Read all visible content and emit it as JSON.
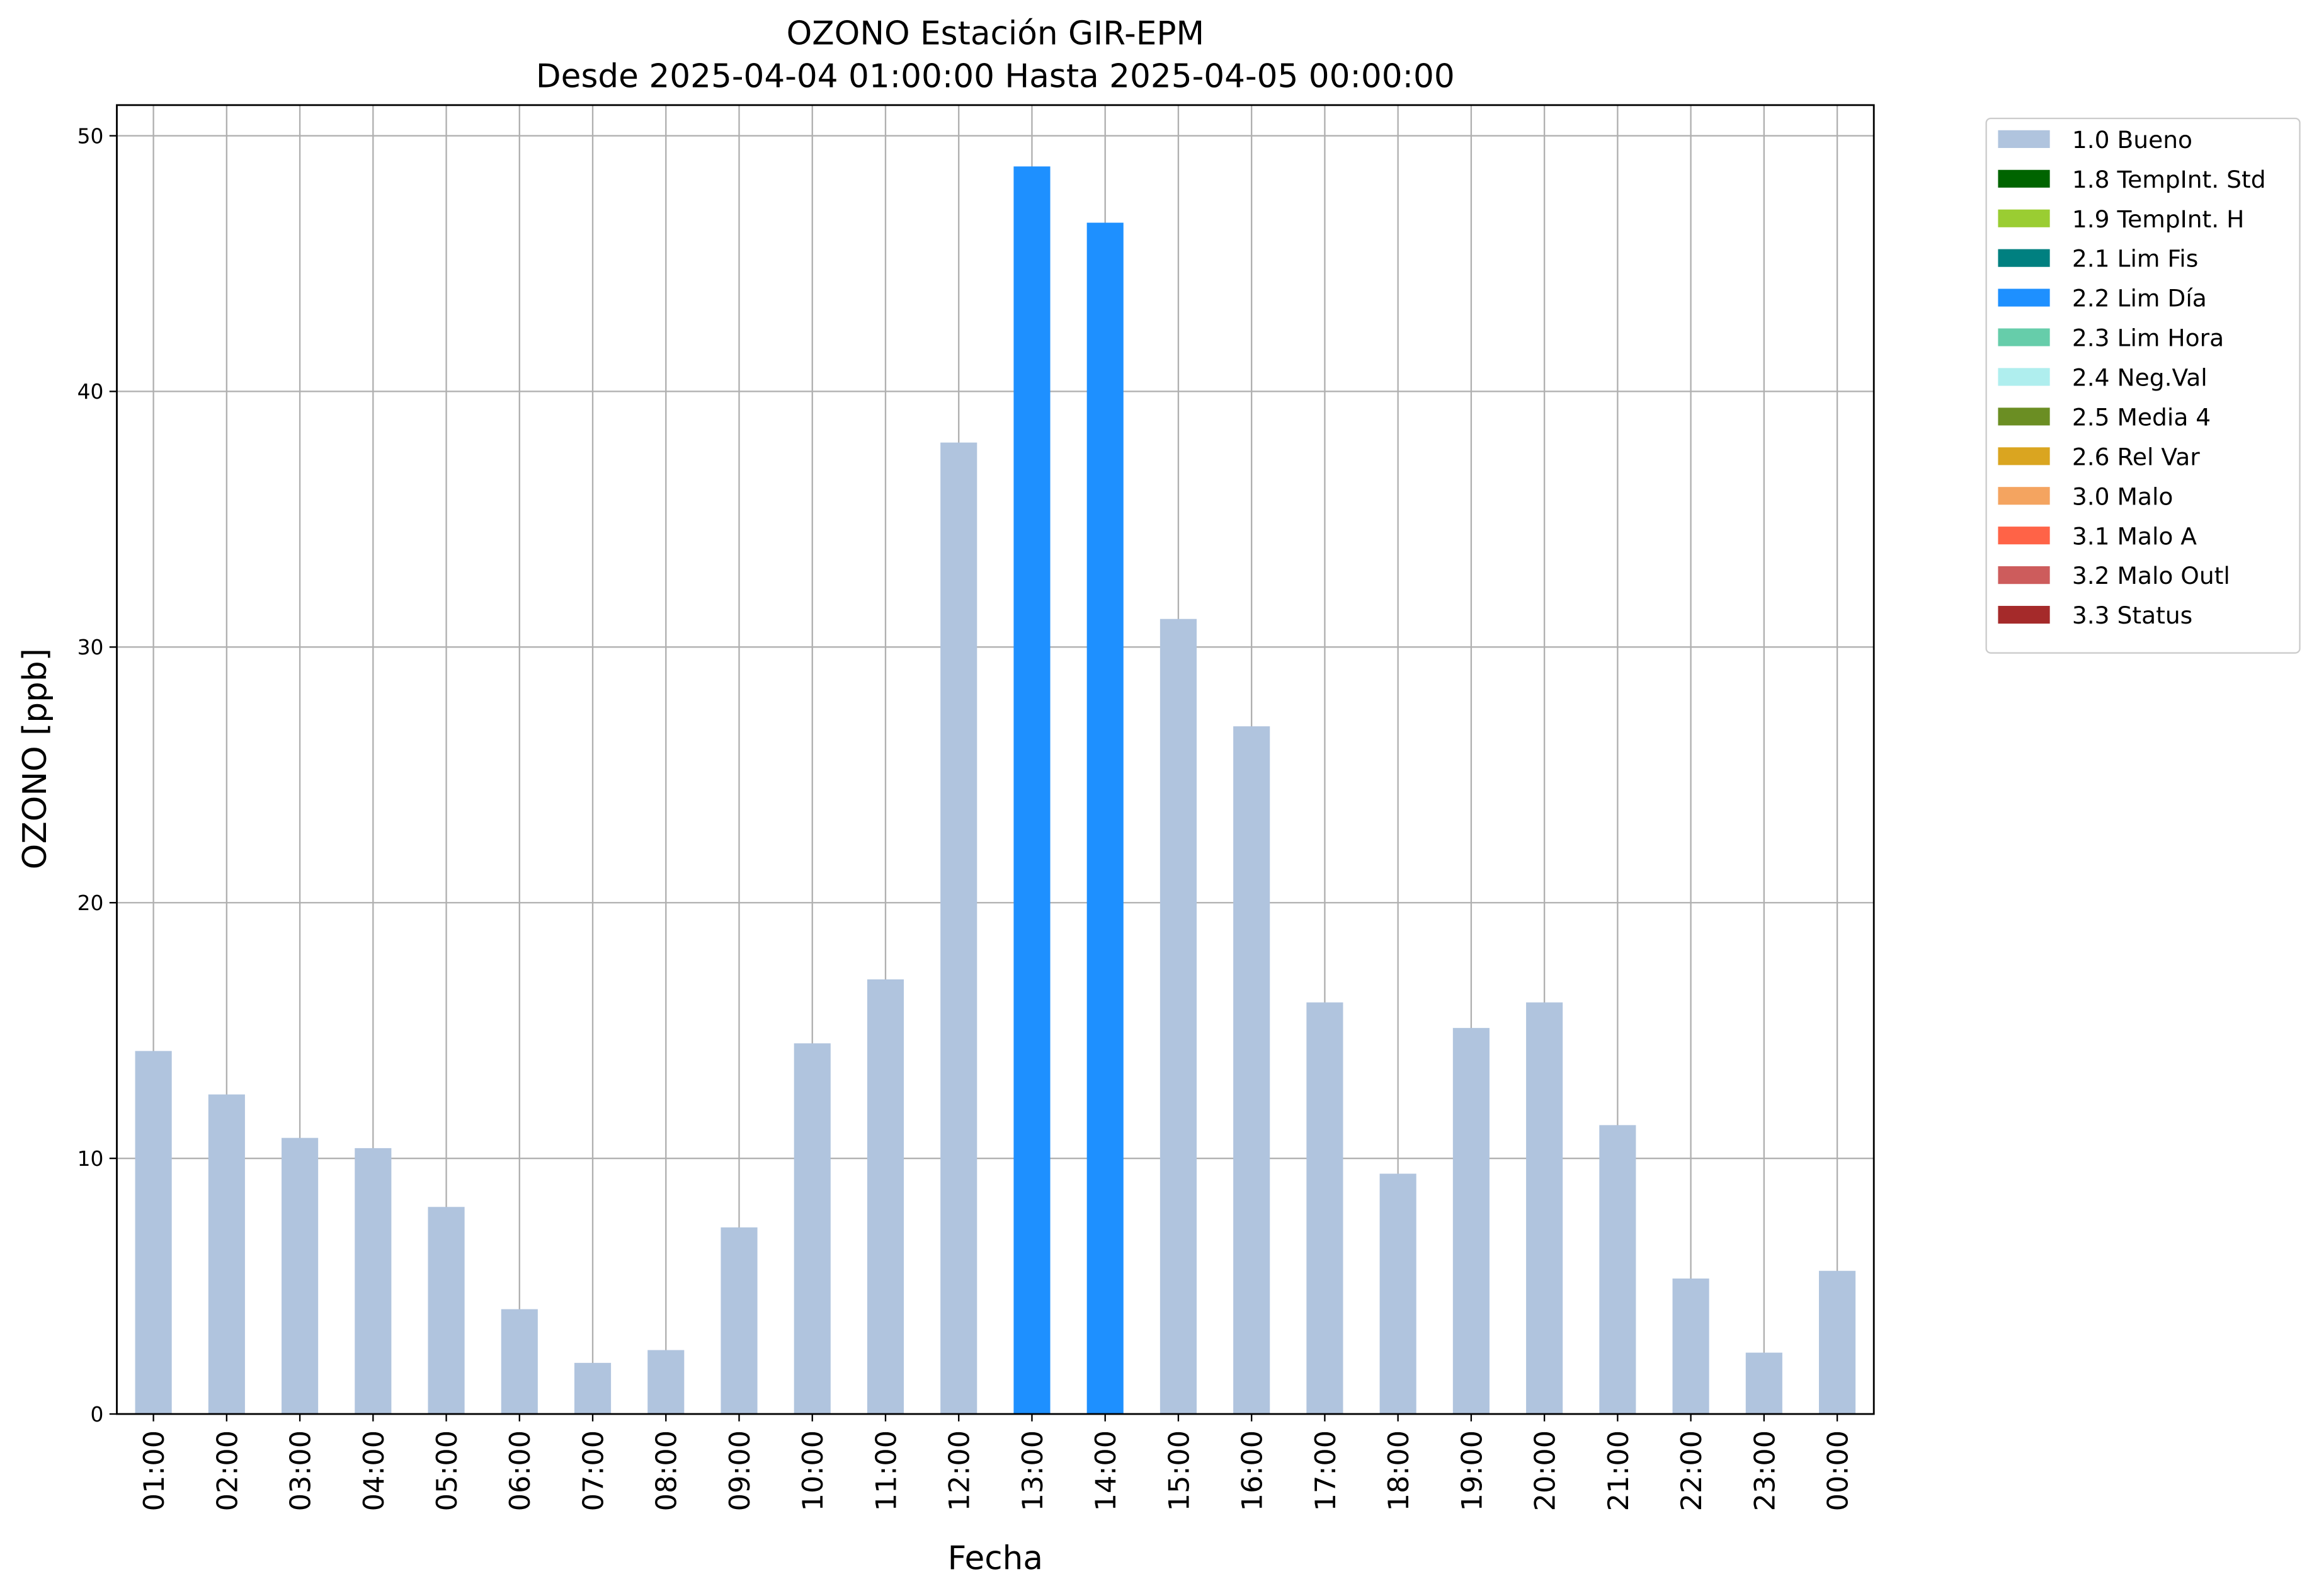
{
  "chart_data": {
    "type": "bar",
    "stacked": true,
    "title": "OZONO Estación GIR-EPM",
    "subtitle": "Desde 2025-04-04 01:00:00 Hasta 2025-04-05 00:00:00",
    "x_label": "Fecha",
    "y_label": "OZONO [ppb]",
    "categories": [
      "01:00",
      "02:00",
      "03:00",
      "04:00",
      "05:00",
      "06:00",
      "07:00",
      "08:00",
      "09:00",
      "10:00",
      "11:00",
      "12:00",
      "13:00",
      "14:00",
      "15:00",
      "16:00",
      "17:00",
      "18:00",
      "19:00",
      "20:00",
      "21:00",
      "22:00",
      "23:00",
      "00:00"
    ],
    "series": [
      {
        "name": "1.0 Bueno",
        "color": "#b0c4de",
        "values": [
          14.2,
          12.5,
          10.8,
          10.4,
          8.1,
          4.1,
          2.0,
          2.5,
          7.3,
          14.5,
          17.0,
          38.0,
          null,
          null,
          31.1,
          26.9,
          16.1,
          9.4,
          15.1,
          16.1,
          11.3,
          5.3,
          2.4,
          5.6
        ]
      },
      {
        "name": "1.8 TempInt. Std",
        "color": "#006400",
        "values": [
          null,
          null,
          null,
          null,
          null,
          null,
          null,
          null,
          null,
          null,
          null,
          null,
          null,
          null,
          null,
          null,
          null,
          null,
          null,
          null,
          null,
          null,
          null,
          null
        ]
      },
      {
        "name": "1.9 TempInt. H",
        "color": "#9acd32",
        "values": [
          null,
          null,
          null,
          null,
          null,
          null,
          null,
          null,
          null,
          null,
          null,
          null,
          null,
          null,
          null,
          null,
          null,
          null,
          null,
          null,
          null,
          null,
          null,
          null
        ]
      },
      {
        "name": "2.1 Lim Fis",
        "color": "#008080",
        "values": [
          null,
          null,
          null,
          null,
          null,
          null,
          null,
          null,
          null,
          null,
          null,
          null,
          null,
          null,
          null,
          null,
          null,
          null,
          null,
          null,
          null,
          null,
          null,
          null
        ]
      },
      {
        "name": "2.2 Lim Día",
        "color": "#1e90ff",
        "values": [
          null,
          null,
          null,
          null,
          null,
          null,
          null,
          null,
          null,
          null,
          null,
          null,
          48.8,
          46.6,
          null,
          null,
          null,
          null,
          null,
          null,
          null,
          null,
          null,
          null
        ]
      },
      {
        "name": "2.3 Lim Hora",
        "color": "#66cdaa",
        "values": [
          null,
          null,
          null,
          null,
          null,
          null,
          null,
          null,
          null,
          null,
          null,
          null,
          null,
          null,
          null,
          null,
          null,
          null,
          null,
          null,
          null,
          null,
          null,
          null
        ]
      },
      {
        "name": "2.4 Neg.Val",
        "color": "#afeeee",
        "values": [
          null,
          null,
          null,
          null,
          null,
          null,
          null,
          null,
          null,
          null,
          null,
          null,
          null,
          null,
          null,
          null,
          null,
          null,
          null,
          null,
          null,
          null,
          null,
          null
        ]
      },
      {
        "name": "2.5 Media 4",
        "color": "#6b8e23",
        "values": [
          null,
          null,
          null,
          null,
          null,
          null,
          null,
          null,
          null,
          null,
          null,
          null,
          null,
          null,
          null,
          null,
          null,
          null,
          null,
          null,
          null,
          null,
          null,
          null
        ]
      },
      {
        "name": "2.6 Rel Var",
        "color": "#daa520",
        "values": [
          null,
          null,
          null,
          null,
          null,
          null,
          null,
          null,
          null,
          null,
          null,
          null,
          null,
          null,
          null,
          null,
          null,
          null,
          null,
          null,
          null,
          null,
          null,
          null
        ]
      },
      {
        "name": "3.0 Malo",
        "color": "#f4a460",
        "values": [
          null,
          null,
          null,
          null,
          null,
          null,
          null,
          null,
          null,
          null,
          null,
          null,
          null,
          null,
          null,
          null,
          null,
          null,
          null,
          null,
          null,
          null,
          null,
          null
        ]
      },
      {
        "name": "3.1 Malo A",
        "color": "#ff6347",
        "values": [
          null,
          null,
          null,
          null,
          null,
          null,
          null,
          null,
          null,
          null,
          null,
          null,
          null,
          null,
          null,
          null,
          null,
          null,
          null,
          null,
          null,
          null,
          null,
          null
        ]
      },
      {
        "name": "3.2 Malo Outl",
        "color": "#cd5c5c",
        "values": [
          null,
          null,
          null,
          null,
          null,
          null,
          null,
          null,
          null,
          null,
          null,
          null,
          null,
          null,
          null,
          null,
          null,
          null,
          null,
          null,
          null,
          null,
          null,
          null
        ]
      },
      {
        "name": "3.3 Status",
        "color": "#a52a2a",
        "values": [
          null,
          null,
          null,
          null,
          null,
          null,
          null,
          null,
          null,
          null,
          null,
          null,
          null,
          null,
          null,
          null,
          null,
          null,
          null,
          null,
          null,
          null,
          null,
          null
        ]
      }
    ],
    "ylim": [
      0,
      51.2
    ],
    "yticks": [
      0,
      10,
      20,
      30,
      40,
      50
    ],
    "grid": true,
    "legend": "outside upper right"
  }
}
